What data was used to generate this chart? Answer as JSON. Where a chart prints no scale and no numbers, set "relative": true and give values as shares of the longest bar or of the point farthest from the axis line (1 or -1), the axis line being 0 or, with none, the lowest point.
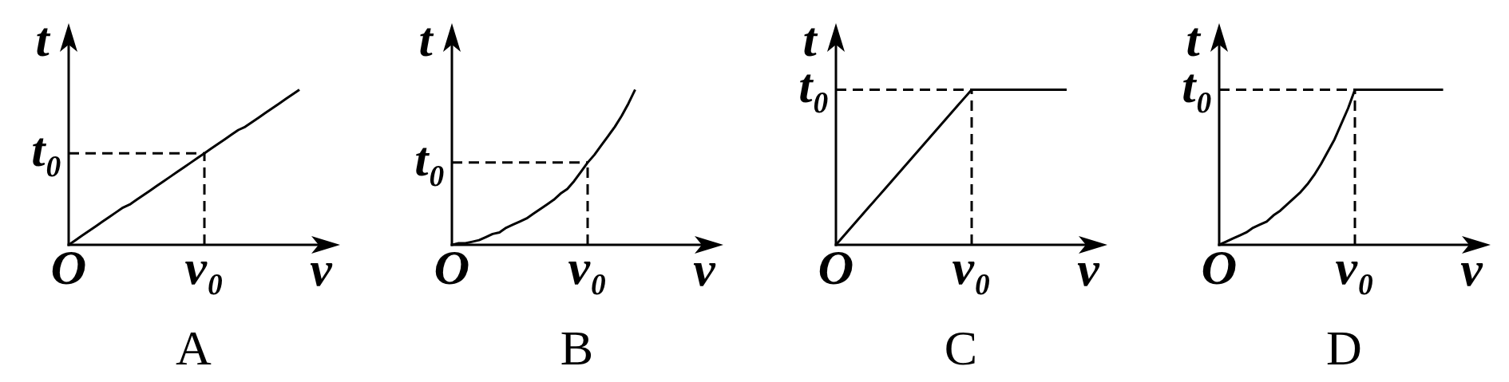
{
  "chart_data": [
    {
      "type": "line",
      "relative": true,
      "title": "A",
      "xlabel": "v",
      "ylabel": "t",
      "categories": [
        "O",
        null,
        null,
        null,
        null,
        null,
        null,
        null,
        null,
        null,
        null,
        null,
        null,
        null,
        null,
        null,
        null,
        null,
        null,
        null,
        "v₀",
        null,
        null,
        null,
        null,
        null,
        null,
        null,
        null,
        null,
        null,
        null,
        null,
        null,
        null,
        null,
        null,
        null,
        null,
        null,
        null
      ],
      "annotations": [
        {
          "text": "t₀",
          "x": "O",
          "y": 0.59
        }
      ],
      "series": [
        {
          "color": "#000000",
          "values": [
            0,
            0.03,
            0.06,
            0.09,
            0.12,
            0.15,
            0.18,
            0.21,
            0.24,
            0.26,
            0.29,
            0.32,
            0.35,
            0.38,
            0.41,
            0.44,
            0.47,
            0.5,
            0.53,
            0.56,
            0.59,
            0.62,
            0.65,
            0.68,
            0.71,
            0.74,
            0.76,
            0.79,
            0.82,
            0.85,
            0.88,
            0.91,
            0.94,
            0.97,
            1,
            null,
            null,
            null,
            null,
            null,
            null
          ]
        },
        {
          "color": "#000000",
          "line_style": "dashed",
          "x": [
            "O",
            "v₀"
          ],
          "values": [
            0.59,
            0.59
          ]
        },
        {
          "color": "#000000",
          "line_style": "dashed",
          "x": [
            "v₀",
            "v₀"
          ],
          "values": [
            0,
            0.59
          ]
        }
      ]
    },
    {
      "type": "line",
      "relative": true,
      "title": "B",
      "xlabel": "v",
      "ylabel": "t",
      "categories": [
        "O",
        null,
        null,
        null,
        null,
        null,
        null,
        null,
        null,
        null,
        null,
        null,
        null,
        null,
        null,
        null,
        null,
        null,
        null,
        null,
        "v₀",
        null,
        null,
        null,
        null,
        null,
        null,
        null,
        null,
        null,
        null,
        null,
        null,
        null,
        null,
        null,
        null,
        null,
        null,
        null,
        null
      ],
      "annotations": [
        {
          "text": "t₀",
          "x": "O",
          "y": 0.53
        }
      ],
      "series": [
        {
          "color": "#000000",
          "values": [
            0,
            0.01,
            0.01,
            0.02,
            0.03,
            0.05,
            0.07,
            0.08,
            0.11,
            0.13,
            0.15,
            0.17,
            0.2,
            0.23,
            0.26,
            0.29,
            0.33,
            0.36,
            0.41,
            0.47,
            0.53,
            0.58,
            0.64,
            0.7,
            0.76,
            0.83,
            0.91,
            1,
            null,
            null,
            null,
            null,
            null,
            null,
            null,
            null,
            null,
            null,
            null,
            null,
            null
          ]
        },
        {
          "color": "#000000",
          "line_style": "dashed",
          "x": [
            "O",
            "v₀"
          ],
          "values": [
            0.53,
            0.53
          ]
        },
        {
          "color": "#000000",
          "line_style": "dashed",
          "x": [
            "v₀",
            "v₀"
          ],
          "values": [
            0,
            0.53
          ]
        }
      ]
    },
    {
      "type": "line",
      "relative": true,
      "title": "C",
      "xlabel": "v",
      "ylabel": "t",
      "categories": [
        "O",
        null,
        null,
        null,
        null,
        null,
        null,
        null,
        null,
        null,
        null,
        null,
        null,
        null,
        null,
        null,
        null,
        null,
        null,
        null,
        "v₀",
        null,
        null,
        null,
        null,
        null,
        null,
        null,
        null,
        null,
        null,
        null,
        null,
        null,
        null,
        null,
        null,
        null,
        null,
        null,
        null
      ],
      "annotations": [
        {
          "text": "t₀",
          "x": "O",
          "y": 1
        }
      ],
      "series": [
        {
          "color": "#000000",
          "values": [
            0,
            0.05,
            0.1,
            0.15,
            0.2,
            0.25,
            0.3,
            0.35,
            0.4,
            0.45,
            0.5,
            0.55,
            0.6,
            0.65,
            0.7,
            0.75,
            0.8,
            0.85,
            0.9,
            0.95,
            1,
            1,
            1,
            1,
            1,
            1,
            1,
            1,
            1,
            1,
            1,
            1,
            1,
            1,
            1,
            null,
            null,
            null,
            null,
            null,
            null
          ]
        },
        {
          "color": "#000000",
          "line_style": "dashed",
          "x": [
            "O",
            "v₀"
          ],
          "values": [
            1,
            1
          ]
        },
        {
          "color": "#000000",
          "line_style": "dashed",
          "x": [
            "v₀",
            "v₀"
          ],
          "values": [
            0,
            1
          ]
        }
      ]
    },
    {
      "type": "line",
      "relative": true,
      "title": "D",
      "xlabel": "v",
      "ylabel": "t",
      "categories": [
        "O",
        null,
        null,
        null,
        null,
        null,
        null,
        null,
        null,
        null,
        null,
        null,
        null,
        null,
        null,
        null,
        null,
        null,
        null,
        null,
        "v₀",
        null,
        null,
        null,
        null,
        null,
        null,
        null,
        null,
        null,
        null,
        null,
        null,
        null,
        null,
        null,
        null,
        null,
        null,
        null,
        null
      ],
      "annotations": [
        {
          "text": "t₀",
          "x": "O",
          "y": 1
        }
      ],
      "series": [
        {
          "color": "#000000",
          "values": [
            0,
            0.02,
            0.04,
            0.06,
            0.08,
            0.11,
            0.13,
            0.15,
            0.19,
            0.22,
            0.26,
            0.3,
            0.34,
            0.39,
            0.45,
            0.52,
            0.6,
            0.68,
            0.78,
            0.88,
            1,
            1,
            1,
            1,
            1,
            1,
            1,
            1,
            1,
            1,
            1,
            1,
            1,
            1,
            null,
            null,
            null,
            null,
            null,
            null,
            null
          ]
        },
        {
          "color": "#000000",
          "line_style": "dashed",
          "x": [
            "O",
            "v₀"
          ],
          "values": [
            1,
            1
          ]
        },
        {
          "color": "#000000",
          "line_style": "dashed",
          "x": [
            "v₀",
            "v₀"
          ],
          "values": [
            0,
            1
          ]
        }
      ]
    }
  ]
}
